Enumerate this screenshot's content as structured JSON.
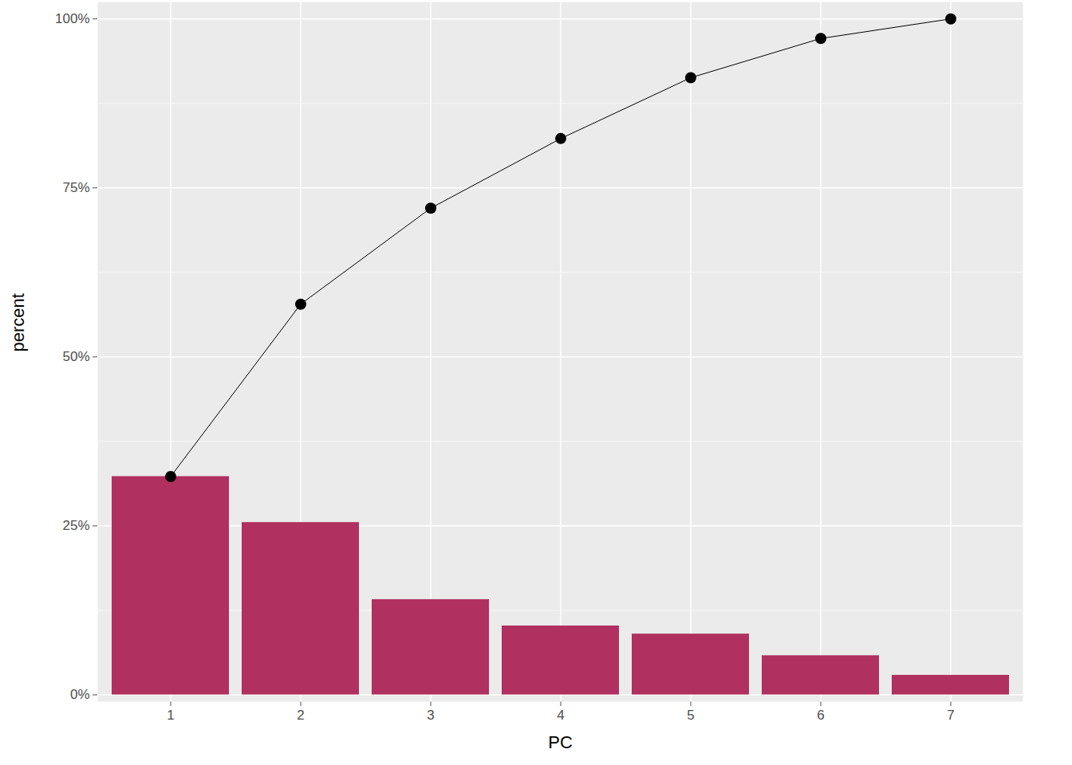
{
  "chart_data": {
    "type": "bar",
    "x_label": "PC",
    "y_label": "percent",
    "categories": [
      "1",
      "2",
      "3",
      "4",
      "5",
      "6",
      "7"
    ],
    "series": [
      {
        "type": "bar",
        "color": "#B03060",
        "values": [
          32.3,
          25.5,
          14.1,
          10.2,
          9.0,
          5.8,
          2.9
        ]
      },
      {
        "type": "line",
        "color": "#000000",
        "marker": "circle",
        "values": [
          32.3,
          57.8,
          72.0,
          82.3,
          91.3,
          97.1,
          100
        ]
      }
    ],
    "ylim": [
      -1,
      102.5
    ],
    "yticks": [
      {
        "value": 0,
        "label": "0%"
      },
      {
        "value": 25,
        "label": "25%"
      },
      {
        "value": 50,
        "label": "50%"
      },
      {
        "value": 75,
        "label": "75%"
      },
      {
        "value": 100,
        "label": "100%"
      }
    ],
    "grid": true
  }
}
